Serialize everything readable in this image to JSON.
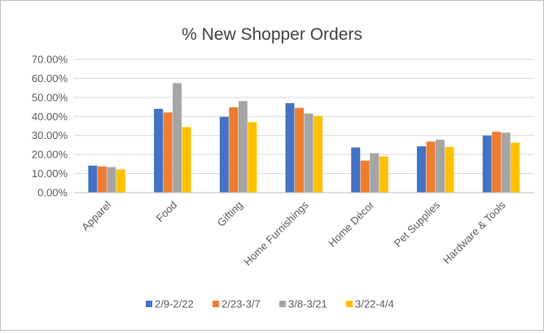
{
  "chart_data": {
    "type": "bar",
    "title": "% New Shopper Orders",
    "categories": [
      "Apparel",
      "Food",
      "Gifting",
      "Home Furnishings",
      "Home Décor",
      "Pet Supplies",
      "Hardware & Tools"
    ],
    "series": [
      {
        "name": "2/9-2/22",
        "color": "#4472C4",
        "values": [
          0.142,
          0.44,
          0.398,
          0.47,
          0.237,
          0.243,
          0.3
        ]
      },
      {
        "name": "2/23-3/7",
        "color": "#ED7D31",
        "values": [
          0.138,
          0.421,
          0.448,
          0.445,
          0.168,
          0.268,
          0.32
        ]
      },
      {
        "name": "3/8-3/21",
        "color": "#A5A5A5",
        "values": [
          0.134,
          0.575,
          0.481,
          0.415,
          0.207,
          0.278,
          0.315
        ]
      },
      {
        "name": "3/22-4/4",
        "color": "#FFC000",
        "values": [
          0.122,
          0.344,
          0.37,
          0.403,
          0.19,
          0.24,
          0.262
        ]
      }
    ],
    "ylim": [
      0,
      0.7
    ],
    "yticks": [
      "0.00%",
      "10.00%",
      "20.00%",
      "30.00%",
      "40.00%",
      "50.00%",
      "60.00%",
      "70.00%"
    ],
    "xlabel": "",
    "ylabel": "",
    "grid": true,
    "legend_position": "bottom"
  }
}
